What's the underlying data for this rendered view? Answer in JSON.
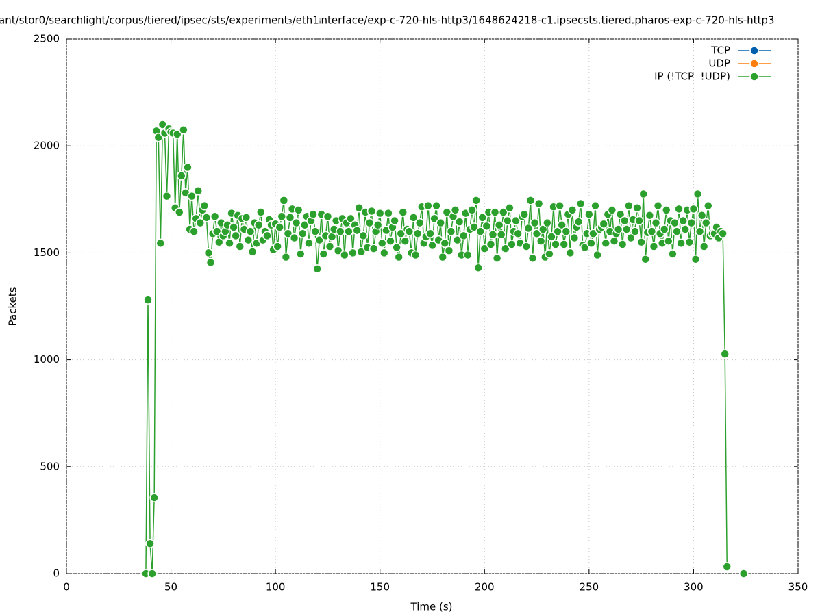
{
  "chart_data": {
    "type": "line",
    "title": "ant/stor0/searchlight/corpus/tiered/ipsec/sts/experiment₃/eth1ᵢnterface/exp-c-720-hls-http3/1648624218-c1.ipsecsts.tiered.pharos-exp-c-720-hls-http3",
    "xlabel": "Time (s)",
    "ylabel": "Packets",
    "xlim": [
      0,
      350
    ],
    "ylim": [
      0,
      2500
    ],
    "xticks": [
      0,
      50,
      100,
      150,
      200,
      250,
      300,
      350
    ],
    "yticks": [
      0,
      500,
      1000,
      1500,
      2000,
      2500
    ],
    "grid": true,
    "legend": "top right",
    "series": [
      {
        "name": "TCP",
        "color": "#0060ad",
        "x": [],
        "values": []
      },
      {
        "name": "UDP",
        "color": "#ff7f0e",
        "x": [],
        "values": []
      },
      {
        "name": "IP (!TCP  !UDP)",
        "color": "#2ca02c",
        "x": [
          38,
          39,
          40,
          41,
          42,
          43,
          44,
          45,
          46,
          47,
          48,
          49,
          50,
          51,
          52,
          53,
          54,
          55,
          56,
          57,
          58,
          59,
          60,
          61,
          62,
          63,
          64,
          65,
          66,
          67,
          68,
          69,
          70,
          71,
          72,
          73,
          74,
          75,
          76,
          77,
          78,
          79,
          80,
          81,
          82,
          83,
          84,
          85,
          86,
          87,
          88,
          89,
          90,
          91,
          92,
          93,
          94,
          95,
          96,
          97,
          98,
          99,
          100,
          101,
          102,
          103,
          104,
          105,
          106,
          107,
          108,
          109,
          110,
          111,
          112,
          113,
          114,
          115,
          116,
          117,
          118,
          119,
          120,
          121,
          122,
          123,
          124,
          125,
          126,
          127,
          128,
          129,
          130,
          131,
          132,
          133,
          134,
          135,
          136,
          137,
          138,
          139,
          140,
          141,
          142,
          143,
          144,
          145,
          146,
          147,
          148,
          149,
          150,
          151,
          152,
          153,
          154,
          155,
          156,
          157,
          158,
          159,
          160,
          161,
          162,
          163,
          164,
          165,
          166,
          167,
          168,
          169,
          170,
          171,
          172,
          173,
          174,
          175,
          176,
          177,
          178,
          179,
          180,
          181,
          182,
          183,
          184,
          185,
          186,
          187,
          188,
          189,
          190,
          191,
          192,
          193,
          194,
          195,
          196,
          197,
          198,
          199,
          200,
          201,
          202,
          203,
          204,
          205,
          206,
          207,
          208,
          209,
          210,
          211,
          212,
          213,
          214,
          215,
          216,
          217,
          218,
          219,
          220,
          221,
          222,
          223,
          224,
          225,
          226,
          227,
          228,
          229,
          230,
          231,
          232,
          233,
          234,
          235,
          236,
          237,
          238,
          239,
          240,
          241,
          242,
          243,
          244,
          245,
          246,
          247,
          248,
          249,
          250,
          251,
          252,
          253,
          254,
          255,
          256,
          257,
          258,
          259,
          260,
          261,
          262,
          263,
          264,
          265,
          266,
          267,
          268,
          269,
          270,
          271,
          272,
          273,
          274,
          275,
          276,
          277,
          278,
          279,
          280,
          281,
          282,
          283,
          284,
          285,
          286,
          287,
          288,
          289,
          290,
          291,
          292,
          293,
          294,
          295,
          296,
          297,
          298,
          299,
          300,
          301,
          302,
          303,
          304,
          305,
          306,
          307,
          308,
          309,
          310,
          311,
          312,
          313,
          314,
          315,
          316,
          317,
          324
        ],
        "values": [
          0,
          1280,
          140,
          0,
          355,
          2070,
          2040,
          1545,
          2100,
          2060,
          1765,
          2080,
          2065,
          2060,
          1710,
          2055,
          1690,
          1860,
          2075,
          1780,
          1900,
          1610,
          1765,
          1600,
          1660,
          1790,
          1640,
          1700,
          1720,
          1665,
          1500,
          1455,
          1590,
          1670,
          1600,
          1550,
          1640,
          1580,
          1600,
          1630,
          1545,
          1685,
          1620,
          1580,
          1675,
          1530,
          1660,
          1610,
          1665,
          1560,
          1600,
          1505,
          1640,
          1545,
          1630,
          1690,
          1560,
          1600,
          1580,
          1655,
          1630,
          1515,
          1635,
          1530,
          1620,
          1670,
          1745,
          1480,
          1590,
          1665,
          1705,
          1570,
          1640,
          1700,
          1495,
          1590,
          1630,
          1670,
          1545,
          1650,
          1680,
          1600,
          1425,
          1560,
          1680,
          1495,
          1580,
          1670,
          1530,
          1575,
          1610,
          1650,
          1510,
          1600,
          1660,
          1490,
          1640,
          1600,
          1660,
          1500,
          1630,
          1605,
          1710,
          1505,
          1580,
          1690,
          1525,
          1640,
          1695,
          1520,
          1600,
          1630,
          1685,
          1545,
          1500,
          1605,
          1685,
          1555,
          1620,
          1650,
          1525,
          1480,
          1590,
          1690,
          1555,
          1610,
          1600,
          1500,
          1665,
          1490,
          1590,
          1640,
          1715,
          1545,
          1575,
          1720,
          1590,
          1535,
          1660,
          1720,
          1560,
          1640,
          1480,
          1545,
          1690,
          1510,
          1600,
          1670,
          1700,
          1560,
          1645,
          1490,
          1580,
          1685,
          1490,
          1610,
          1700,
          1620,
          1745,
          1430,
          1600,
          1665,
          1520,
          1625,
          1690,
          1540,
          1585,
          1690,
          1475,
          1630,
          1585,
          1690,
          1520,
          1650,
          1710,
          1540,
          1600,
          1650,
          1590,
          1545,
          1670,
          1680,
          1530,
          1615,
          1745,
          1475,
          1640,
          1590,
          1730,
          1555,
          1610,
          1480,
          1640,
          1495,
          1575,
          1715,
          1540,
          1600,
          1720,
          1630,
          1540,
          1600,
          1680,
          1500,
          1700,
          1570,
          1620,
          1645,
          1730,
          1535,
          1525,
          1590,
          1680,
          1545,
          1590,
          1720,
          1490,
          1610,
          1620,
          1635,
          1545,
          1680,
          1600,
          1700,
          1555,
          1590,
          1610,
          1680,
          1540,
          1650,
          1610,
          1720,
          1570,
          1655,
          1600,
          1710,
          1650,
          1550,
          1775,
          1470,
          1595,
          1675,
          1600,
          1530,
          1640,
          1720,
          1590,
          1545,
          1610,
          1700,
          1555,
          1650,
          1495,
          1640,
          1600,
          1705,
          1545,
          1650,
          1610,
          1700,
          1550,
          1640,
          1705,
          1470,
          1775,
          1600,
          1675,
          1530,
          1640,
          1720,
          1580,
          1590,
          1590,
          1620,
          1570,
          1600,
          1590,
          1027,
          32,
          null,
          0
        ]
      }
    ]
  }
}
